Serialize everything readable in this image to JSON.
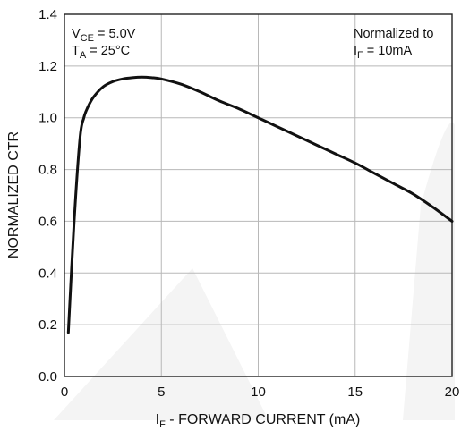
{
  "chart_data": {
    "type": "line",
    "title": "",
    "xlabel": {
      "prefix": "I",
      "sub": "F",
      "rest": " - FORWARD CURRENT (mA)"
    },
    "ylabel": "NORMALIZED CTR",
    "xlim": [
      0,
      20
    ],
    "ylim": [
      0,
      1.4
    ],
    "x_ticks": [
      "0",
      "5",
      "10",
      "15",
      "20"
    ],
    "y_ticks": [
      "0.0",
      "0.2",
      "0.4",
      "0.6",
      "0.8",
      "1.0",
      "1.2",
      "1.4"
    ],
    "grid": true,
    "series": [
      {
        "x": [
          0.2,
          0.5,
          0.8,
          1.0,
          1.2,
          1.5,
          2.0,
          2.5,
          3.0,
          3.5,
          4.0,
          4.5,
          5.0,
          6.0,
          7.0,
          8.0,
          9.0,
          10.0,
          11.0,
          12.0,
          13.0,
          14.0,
          15.0,
          16.0,
          17.0,
          18.0,
          19.0,
          20.0
        ],
        "y": [
          0.17,
          0.6,
          0.92,
          1.0,
          1.04,
          1.08,
          1.12,
          1.14,
          1.15,
          1.155,
          1.157,
          1.155,
          1.15,
          1.13,
          1.1,
          1.065,
          1.035,
          1.0,
          0.965,
          0.93,
          0.895,
          0.86,
          0.825,
          0.785,
          0.745,
          0.705,
          0.655,
          0.6
        ]
      }
    ],
    "annotations": {
      "left": [
        {
          "prefix": "V",
          "sub": "CE",
          "rest": " = 5.0V"
        },
        {
          "prefix": "T",
          "sub": "A",
          "rest": " = 25°C"
        }
      ],
      "right": [
        {
          "prefix": "",
          "sub": "",
          "rest": "Normalized to"
        },
        {
          "prefix": "I",
          "sub": "F",
          "rest": " = 10mA"
        }
      ]
    }
  }
}
